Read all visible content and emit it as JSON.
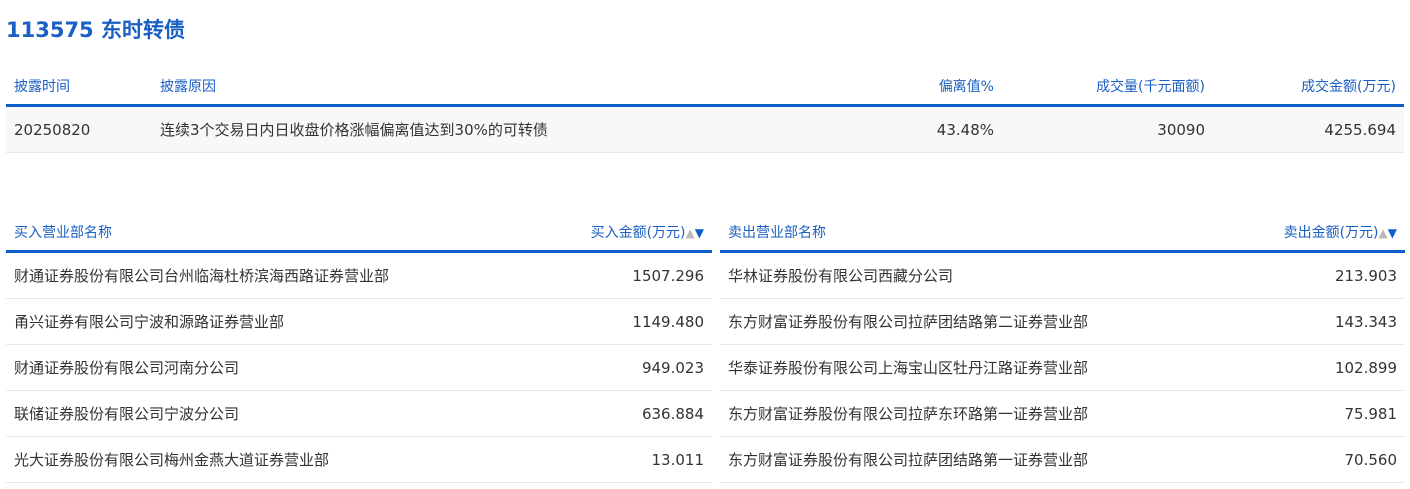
{
  "title": "113575 东时转债",
  "disclosure": {
    "headers": [
      "披露时间",
      "披露原因",
      "偏离值%",
      "成交量(千元面额)",
      "成交金额(万元)"
    ],
    "row": [
      "20250820",
      "连续3个交易日内日收盘价格涨幅偏离值达到30%的可转债",
      "43.48%",
      "30090",
      "4255.694"
    ]
  },
  "buy": {
    "headers": [
      "买入营业部名称",
      "买入金额(万元)"
    ],
    "rows": [
      [
        "财通证券股份有限公司台州临海杜桥滨海西路证券营业部",
        "1507.296"
      ],
      [
        "甬兴证券有限公司宁波和源路证券营业部",
        "1149.480"
      ],
      [
        "财通证券股份有限公司河南分公司",
        "949.023"
      ],
      [
        "联储证券股份有限公司宁波分公司",
        "636.884"
      ],
      [
        "光大证券股份有限公司梅州金燕大道证券营业部",
        "13.011"
      ]
    ]
  },
  "sell": {
    "headers": [
      "卖出营业部名称",
      "卖出金额(万元)"
    ],
    "rows": [
      [
        "华林证券股份有限公司西藏分公司",
        "213.903"
      ],
      [
        "东方财富证券股份有限公司拉萨团结路第二证券营业部",
        "143.343"
      ],
      [
        "华泰证券股份有限公司上海宝山区牡丹江路证券营业部",
        "102.899"
      ],
      [
        "东方财富证券股份有限公司拉萨东环路第一证券营业部",
        "75.981"
      ],
      [
        "东方财富证券股份有限公司拉萨团结路第一证券营业部",
        "70.560"
      ]
    ]
  },
  "sort_icons": {
    "up": "▲",
    "down": "▼"
  }
}
